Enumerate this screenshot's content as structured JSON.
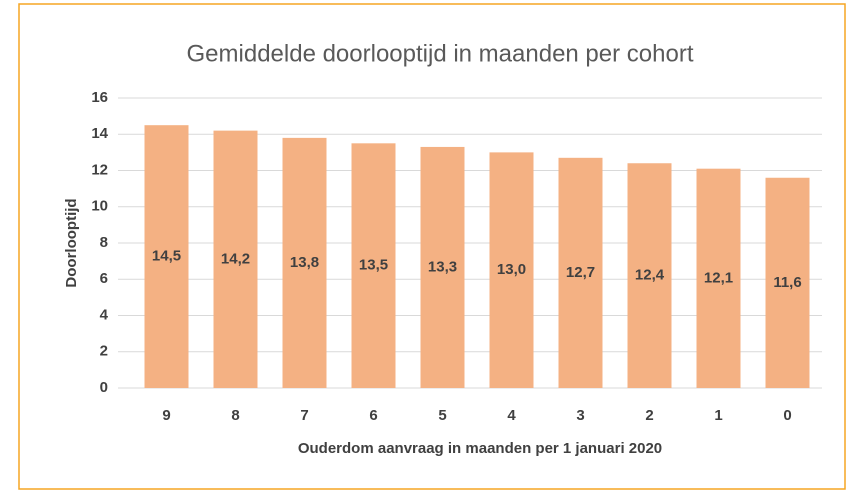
{
  "chart_data": {
    "type": "bar",
    "title": "Gemiddelde  doorlooptijd  in maanden per cohort",
    "x_label": "Ouderdom aanvraag in maanden per 1 januari 2020",
    "y_label": "Doorlooptijd",
    "categories": [
      "9",
      "8",
      "7",
      "6",
      "5",
      "4",
      "3",
      "2",
      "1",
      "0"
    ],
    "values": [
      14.5,
      14.2,
      13.8,
      13.5,
      13.3,
      13.0,
      12.7,
      12.4,
      12.1,
      11.6
    ],
    "value_labels": [
      "14,5",
      "14,2",
      "13,8",
      "13,5",
      "13,3",
      "13,0",
      "12,7",
      "12,4",
      "12,1",
      "11,6"
    ],
    "color": "#f4b183",
    "ylim": [
      0,
      16
    ],
    "yticks": [
      0,
      2,
      4,
      6,
      8,
      10,
      12,
      14,
      16
    ],
    "grid": true
  }
}
